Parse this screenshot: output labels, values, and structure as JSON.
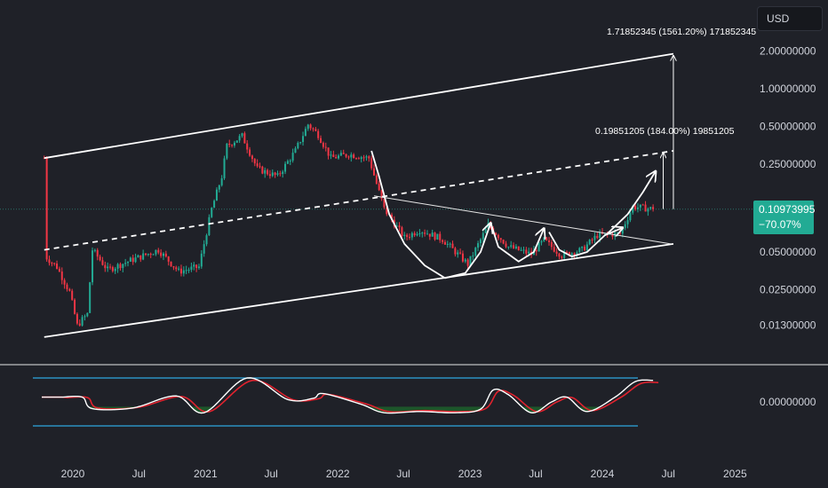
{
  "currency_button": "USD",
  "price_tag": {
    "price": "0.10973995",
    "change": "−70.07%"
  },
  "annotations": {
    "big_move": "1.71852345 (1561.20%) 171852345",
    "small_move": "0.19851205 (184.00%) 19851205"
  },
  "colors": {
    "background": "#1f2128",
    "up_candle": "#22ab94",
    "down_candle": "#f23645",
    "line_white": "#ffffff",
    "oscillator_fast": "#ffffff",
    "oscillator_slow": "#e0222e",
    "band_line": "#2fa8e0",
    "oscillator_fill": "#1d5b2a",
    "price_tag": "#22ab94"
  },
  "chart_data": {
    "type": "candlestick",
    "scale": "log",
    "x_axis": {
      "ticks": [
        "2020",
        "Jul",
        "2021",
        "Jul",
        "2022",
        "Jul",
        "2023",
        "Jul",
        "2024",
        "Jul",
        "2025"
      ],
      "range": [
        "2019-10-01",
        "2025-03-15"
      ]
    },
    "y_axis": {
      "ticks": [
        "2.00000000",
        "1.00000000",
        "0.50000000",
        "0.25000000",
        "0.05000000",
        "0.02500000",
        "0.01300000"
      ],
      "tick_values": [
        2.0,
        1.0,
        0.5,
        0.25,
        0.05,
        0.025,
        0.013
      ],
      "range": [
        0.009,
        3.2
      ]
    },
    "price_series": {
      "interval": "weekly",
      "start": "2019-10-14",
      "end": "2024-05-20",
      "approx_close": [
        [
          "2019-10-14",
          0.28
        ],
        [
          "2019-10-21",
          0.045
        ],
        [
          "2019-11-18",
          0.038
        ],
        [
          "2019-12-23",
          0.024
        ],
        [
          "2020-01-13",
          0.013
        ],
        [
          "2020-02-10",
          0.016
        ],
        [
          "2020-02-24",
          0.052
        ],
        [
          "2020-04-06",
          0.036
        ],
        [
          "2020-06-01",
          0.042
        ],
        [
          "2020-08-24",
          0.052
        ],
        [
          "2020-10-19",
          0.035
        ],
        [
          "2020-12-14",
          0.038
        ],
        [
          "2021-01-18",
          0.11
        ],
        [
          "2021-02-15",
          0.2
        ],
        [
          "2021-03-01",
          0.35
        ],
        [
          "2021-04-12",
          0.42
        ],
        [
          "2021-05-24",
          0.23
        ],
        [
          "2021-07-19",
          0.2
        ],
        [
          "2021-09-06",
          0.32
        ],
        [
          "2021-10-11",
          0.52
        ],
        [
          "2021-11-08",
          0.43
        ],
        [
          "2021-12-13",
          0.28
        ],
        [
          "2022-01-31",
          0.3
        ],
        [
          "2022-03-28",
          0.28
        ],
        [
          "2022-05-09",
          0.11
        ],
        [
          "2022-07-04",
          0.065
        ],
        [
          "2022-08-15",
          0.075
        ],
        [
          "2022-10-17",
          0.063
        ],
        [
          "2022-12-26",
          0.04
        ],
        [
          "2023-02-20",
          0.082
        ],
        [
          "2023-04-17",
          0.055
        ],
        [
          "2023-06-19",
          0.048
        ],
        [
          "2023-07-24",
          0.062
        ],
        [
          "2023-09-11",
          0.047
        ],
        [
          "2023-11-06",
          0.052
        ],
        [
          "2023-12-18",
          0.068
        ],
        [
          "2024-02-19",
          0.07
        ],
        [
          "2024-03-25",
          0.115
        ],
        [
          "2024-05-20",
          0.10973995
        ]
      ]
    },
    "last_value": 0.10973995,
    "last_change_pct": -70.07,
    "overlays": {
      "channel_upper": [
        [
          "2019-10-14",
          0.28
        ],
        [
          "2024-07-15",
          1.9
        ]
      ],
      "channel_lower": [
        [
          "2019-10-14",
          0.0105
        ],
        [
          "2024-07-15",
          0.058
        ]
      ],
      "channel_mid": [
        [
          "2019-10-14",
          0.052
        ],
        [
          "2024-07-15",
          0.32
        ]
      ],
      "downtrend": [
        [
          "2022-04-11",
          0.14
        ],
        [
          "2024-07-08",
          0.058
        ]
      ],
      "measure_big": {
        "date": "2024-07-15",
        "from": 0.11,
        "to": 1.9
      },
      "measure_small": {
        "date": "2024-06-17",
        "from": 0.11,
        "to": 0.32
      }
    },
    "oscillator": {
      "upper_band_price_level": null,
      "zero_label": "0.00000000",
      "approx_fast": [
        [
          "2019-12-02",
          0.2
        ],
        [
          "2020-01-27",
          0.2
        ],
        [
          "2020-02-24",
          -0.28
        ],
        [
          "2020-06-15",
          -0.25
        ],
        [
          "2020-10-12",
          0.25
        ],
        [
          "2020-12-28",
          -0.45
        ],
        [
          "2021-04-26",
          1.0
        ],
        [
          "2021-08-16",
          0.1
        ],
        [
          "2021-10-25",
          0.15
        ],
        [
          "2021-11-22",
          0.35
        ],
        [
          "2022-03-07",
          -0.1
        ],
        [
          "2022-05-09",
          -0.45
        ],
        [
          "2022-08-15",
          -0.4
        ],
        [
          "2022-11-21",
          -0.45
        ],
        [
          "2023-01-30",
          -0.3
        ],
        [
          "2023-03-06",
          0.5
        ],
        [
          "2023-04-17",
          0.3
        ],
        [
          "2023-06-19",
          -0.45
        ],
        [
          "2023-08-14",
          0.0
        ],
        [
          "2023-09-25",
          0.2
        ],
        [
          "2023-11-20",
          -0.4
        ],
        [
          "2024-02-05",
          0.2
        ],
        [
          "2024-04-01",
          0.85
        ],
        [
          "2024-05-20",
          0.9
        ]
      ]
    }
  }
}
